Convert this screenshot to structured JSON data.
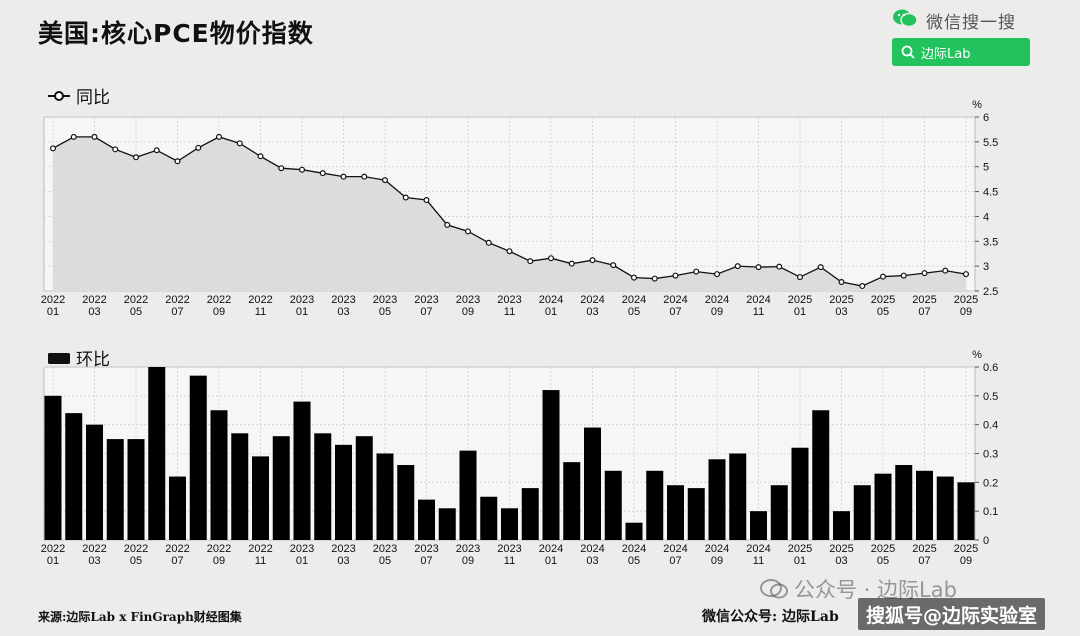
{
  "title": "美国:核心PCE物价指数",
  "wechat_search": {
    "label": "微信搜一搜",
    "query": "边际Lab",
    "color": "#22c35e"
  },
  "chart_data": [
    {
      "type": "line",
      "legend": "同比",
      "unit": "%",
      "ylim": [
        2.5,
        6
      ],
      "yticks": [
        2.5,
        3,
        3.5,
        4,
        4.5,
        5,
        5.5,
        6
      ],
      "grid": true,
      "x": [
        "2022-01",
        "2022-02",
        "2022-03",
        "2022-04",
        "2022-05",
        "2022-06",
        "2022-07",
        "2022-08",
        "2022-09",
        "2022-10",
        "2022-11",
        "2022-12",
        "2023-01",
        "2023-02",
        "2023-03",
        "2023-04",
        "2023-05",
        "2023-06",
        "2023-07",
        "2023-08",
        "2023-09",
        "2023-10",
        "2023-11",
        "2023-12",
        "2024-01",
        "2024-02",
        "2024-03",
        "2024-04",
        "2024-05",
        "2024-06",
        "2024-07",
        "2024-08",
        "2024-09",
        "2024-10",
        "2024-11",
        "2024-12",
        "2025-01",
        "2025-02",
        "2025-03",
        "2025-04",
        "2025-05",
        "2025-06",
        "2025-07",
        "2025-08",
        "2025-09"
      ],
      "values": [
        5.37,
        5.6,
        5.6,
        5.35,
        5.19,
        5.33,
        5.11,
        5.38,
        5.6,
        5.47,
        5.21,
        4.97,
        4.94,
        4.87,
        4.8,
        4.8,
        4.73,
        4.38,
        4.33,
        3.83,
        3.7,
        3.47,
        3.3,
        3.1,
        3.16,
        3.05,
        3.12,
        3.02,
        2.77,
        2.75,
        2.81,
        2.89,
        2.84,
        3.0,
        2.98,
        2.99,
        2.78,
        2.98,
        2.68,
        2.6,
        2.79,
        2.81,
        2.86,
        2.91,
        2.84
      ],
      "xtick_labels": [
        [
          "2022",
          "01"
        ],
        [
          "2022",
          "03"
        ],
        [
          "2022",
          "05"
        ],
        [
          "2022",
          "07"
        ],
        [
          "2022",
          "09"
        ],
        [
          "2022",
          "11"
        ],
        [
          "2023",
          "01"
        ],
        [
          "2023",
          "03"
        ],
        [
          "2023",
          "05"
        ],
        [
          "2023",
          "07"
        ],
        [
          "2023",
          "09"
        ],
        [
          "2023",
          "11"
        ],
        [
          "2024",
          "01"
        ],
        [
          "2024",
          "03"
        ],
        [
          "2024",
          "05"
        ],
        [
          "2024",
          "07"
        ],
        [
          "2024",
          "09"
        ],
        [
          "2024",
          "11"
        ],
        [
          "2025",
          "01"
        ],
        [
          "2025",
          "03"
        ],
        [
          "2025",
          "05"
        ],
        [
          "2025",
          "07"
        ],
        [
          "2025",
          "09"
        ]
      ]
    },
    {
      "type": "bar",
      "legend": "环比",
      "unit": "%",
      "ylim": [
        0,
        0.6
      ],
      "yticks": [
        0,
        0.1,
        0.2,
        0.3,
        0.4,
        0.5,
        0.6
      ],
      "grid": true,
      "x": [
        "2022-01",
        "2022-02",
        "2022-03",
        "2022-04",
        "2022-05",
        "2022-06",
        "2022-07",
        "2022-08",
        "2022-09",
        "2022-10",
        "2022-11",
        "2022-12",
        "2023-01",
        "2023-02",
        "2023-03",
        "2023-04",
        "2023-05",
        "2023-06",
        "2023-07",
        "2023-08",
        "2023-09",
        "2023-10",
        "2023-11",
        "2023-12",
        "2024-01",
        "2024-02",
        "2024-03",
        "2024-04",
        "2024-05",
        "2024-06",
        "2024-07",
        "2024-08",
        "2024-09",
        "2024-10",
        "2024-11",
        "2024-12",
        "2025-01",
        "2025-02",
        "2025-03",
        "2025-04",
        "2025-05",
        "2025-06",
        "2025-07",
        "2025-08",
        "2025-09"
      ],
      "values": [
        0.5,
        0.44,
        0.4,
        0.35,
        0.35,
        0.6,
        0.22,
        0.57,
        0.45,
        0.37,
        0.29,
        0.36,
        0.48,
        0.37,
        0.33,
        0.36,
        0.3,
        0.26,
        0.14,
        0.11,
        0.31,
        0.15,
        0.11,
        0.18,
        0.52,
        0.27,
        0.39,
        0.24,
        0.06,
        0.24,
        0.19,
        0.18,
        0.28,
        0.3,
        0.1,
        0.19,
        0.32,
        0.45,
        0.1,
        0.19,
        0.23,
        0.26,
        0.24,
        0.22,
        0.2
      ],
      "xtick_labels": [
        [
          "2022",
          "01"
        ],
        [
          "2022",
          "03"
        ],
        [
          "2022",
          "05"
        ],
        [
          "2022",
          "07"
        ],
        [
          "2022",
          "09"
        ],
        [
          "2022",
          "11"
        ],
        [
          "2023",
          "01"
        ],
        [
          "2023",
          "03"
        ],
        [
          "2023",
          "05"
        ],
        [
          "2023",
          "07"
        ],
        [
          "2023",
          "09"
        ],
        [
          "2023",
          "11"
        ],
        [
          "2024",
          "01"
        ],
        [
          "2024",
          "03"
        ],
        [
          "2024",
          "05"
        ],
        [
          "2024",
          "07"
        ],
        [
          "2024",
          "09"
        ],
        [
          "2024",
          "11"
        ],
        [
          "2025",
          "01"
        ],
        [
          "2025",
          "03"
        ],
        [
          "2025",
          "05"
        ],
        [
          "2025",
          "07"
        ],
        [
          "2025",
          "09"
        ]
      ]
    }
  ],
  "footer": {
    "source": "来源:边际Lab x FinGraph财经图集",
    "account": "微信公众号: 边际Lab",
    "watermark1": "公众号 · 边际Lab",
    "watermark2": "搜狐号@边际实验室"
  }
}
